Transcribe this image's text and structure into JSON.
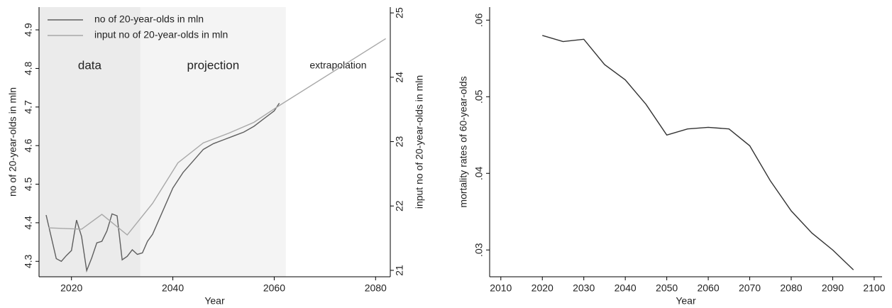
{
  "chart_data": [
    {
      "type": "line",
      "xlabel": "Year",
      "ylabel": "no of 20-year-olds in mln",
      "y2label": "input no of 20-year-olds in mln",
      "xlim": [
        2013.6,
        2082.9
      ],
      "xticks": [
        2020,
        2040,
        2060,
        2080
      ],
      "ylim": [
        4.26,
        4.959
      ],
      "yticks": [
        4.3,
        4.4,
        4.5,
        4.6,
        4.7,
        4.8,
        4.9
      ],
      "y2lim": [
        20.9,
        25.09
      ],
      "y2ticks": [
        21,
        22,
        23,
        24,
        25
      ],
      "regions": [
        {
          "label": "data",
          "x": [
            2013.6,
            2033.6
          ],
          "color": "#ebebeb"
        },
        {
          "label": "projection",
          "x": [
            2033.6,
            2062.3
          ],
          "color": "#f4f4f4"
        },
        {
          "label": "extrapolation",
          "x": [
            2062.3,
            2082.9
          ],
          "color": "#ffffff"
        }
      ],
      "legend": "top-left",
      "series": [
        {
          "name": "no of 20-year-olds in mln",
          "color": "#5f5f5f",
          "x": [
            2015,
            2017,
            2018,
            2019,
            2020,
            2021,
            2022,
            2023,
            2024,
            2025,
            2026,
            2027,
            2028,
            2029,
            2030,
            2031,
            2032,
            2033,
            2034,
            2035,
            2036,
            2038,
            2040,
            2042,
            2044,
            2046,
            2048,
            2050,
            2052,
            2054,
            2056,
            2058,
            2060,
            2061
          ],
          "values": [
            4.42,
            4.307,
            4.3,
            4.315,
            4.328,
            4.407,
            4.364,
            4.276,
            4.309,
            4.348,
            4.352,
            4.379,
            4.423,
            4.418,
            4.304,
            4.313,
            4.33,
            4.318,
            4.322,
            4.352,
            4.37,
            4.43,
            4.49,
            4.53,
            4.56,
            4.59,
            4.605,
            4.615,
            4.625,
            4.635,
            4.65,
            4.67,
            4.69,
            4.71
          ]
        },
        {
          "name": "input no of 20-year-olds in mln",
          "color": "#a8a8a8",
          "axis": "y2",
          "x": [
            2015.5,
            2022,
            2026,
            2031,
            2036,
            2041,
            2046,
            2051,
            2056,
            2061,
            2082
          ],
          "values": [
            21.66,
            21.64,
            21.87,
            21.55,
            22.04,
            22.67,
            22.98,
            23.13,
            23.3,
            23.56,
            24.6
          ]
        }
      ]
    },
    {
      "type": "line",
      "xlabel": "Year",
      "ylabel": "mortality rates of 60-year-olds",
      "xlim": [
        2007.3,
        2101.9
      ],
      "xticks": [
        2010,
        2020,
        2030,
        2040,
        2050,
        2060,
        2070,
        2080,
        2090,
        2100
      ],
      "ylim": [
        0.0265,
        0.0617
      ],
      "yticks": [
        {
          "value": 0.03,
          "label": ".03"
        },
        {
          "value": 0.04,
          "label": ".04"
        },
        {
          "value": 0.05,
          "label": ".05"
        },
        {
          "value": 0.06,
          "label": ".06"
        }
      ],
      "series": [
        {
          "color": "#333333",
          "x": [
            2020,
            2025,
            2030,
            2035,
            2040,
            2045,
            2050,
            2055,
            2060,
            2065,
            2070,
            2075,
            2080,
            2085,
            2090,
            2095
          ],
          "values": [
            0.058,
            0.0572,
            0.0575,
            0.0542,
            0.0522,
            0.049,
            0.045,
            0.0458,
            0.046,
            0.0458,
            0.0436,
            0.039,
            0.0351,
            0.0322,
            0.03,
            0.0274
          ]
        }
      ]
    }
  ]
}
